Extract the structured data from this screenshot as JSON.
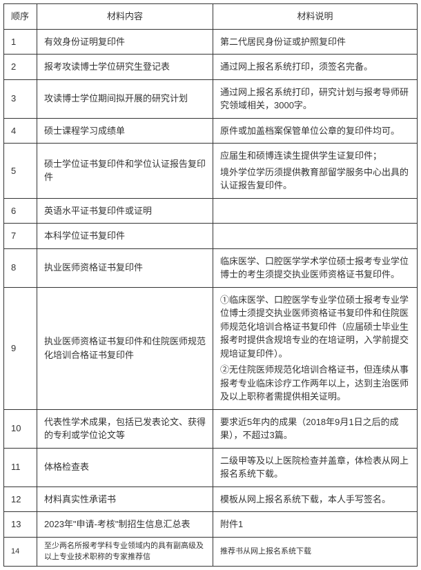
{
  "columns": {
    "seq": "顺序",
    "content": "材料内容",
    "desc": "材料说明"
  },
  "rows": [
    {
      "seq": "1",
      "content": "有效身份证明复印件",
      "desc": "第二代居民身份证或护照复印件"
    },
    {
      "seq": "2",
      "content": "报考攻读博士学位研究生登记表",
      "desc": "通过网上报名系统打印，须签名完备。"
    },
    {
      "seq": "3",
      "content": "攻读博士学位期间拟开展的研究计划",
      "desc": "通过网上报名系统打印，研究计划与报考导师研究领域相关，3000字。"
    },
    {
      "seq": "4",
      "content": "硕士课程学习成绩单",
      "desc": "原件或加盖档案保管单位公章的复印件均可。"
    },
    {
      "seq": "5",
      "content": "硕士学位证书复印件和学位认证报告复印件",
      "desc_parts": [
        "应届生和硕博连读生提供学生证复印件；",
        "境外学位学历须提供教育部留学服务中心出具的认证报告复印件。"
      ]
    },
    {
      "seq": "6",
      "content": "英语水平证书复印件或证明",
      "desc": ""
    },
    {
      "seq": "7",
      "content": "本科学位证书复印件",
      "desc": ""
    },
    {
      "seq": "8",
      "content": "执业医师资格证书复印件",
      "desc": "临床医学、口腔医学学术学位硕士报考专业学位博士的考生须提交执业医师资格证书复印件。"
    },
    {
      "seq": "9",
      "content": "执业医师资格证书复印件和住院医师规范化培训合格证书复印件",
      "desc_parts": [
        "①临床医学、口腔医学专业学位硕士报考专业学位博士须提交执业医师资格证书复印件和住院医师规范化培训合格证书复印件（应届硕士毕业生报考时提供含规培专业的在培证明，入学前提交规培证复印件）。",
        "②无住院医师规范化培训合格证书，但连续从事报考专业临床诊疗工作两年以上，达到主治医师及以上职称者需提供相关证明。"
      ]
    },
    {
      "seq": "10",
      "content": "代表性学术成果，包括已发表论文、获得的专利或学位论文等",
      "desc": "要求近5年内的成果（2018年9月1日之后的成果），不超过3篇。"
    },
    {
      "seq": "11",
      "content": "体格检查表",
      "desc": "二级甲等及以上医院检查并盖章，体检表从网上报名系统下载。"
    },
    {
      "seq": "12",
      "content": "材料真实性承诺书",
      "desc": "模板从网上报名系统下载，本人手写签名。"
    },
    {
      "seq": "13",
      "content": "2023年\"申请-考核\"制招生信息汇总表",
      "desc": "附件1"
    },
    {
      "seq": "14",
      "content": "至少两名所报考学科专业领域内的具有副高级及以上专业技术职称的专家推荐信",
      "desc": "推荐书从网上报名系统下载",
      "small": true
    }
  ]
}
